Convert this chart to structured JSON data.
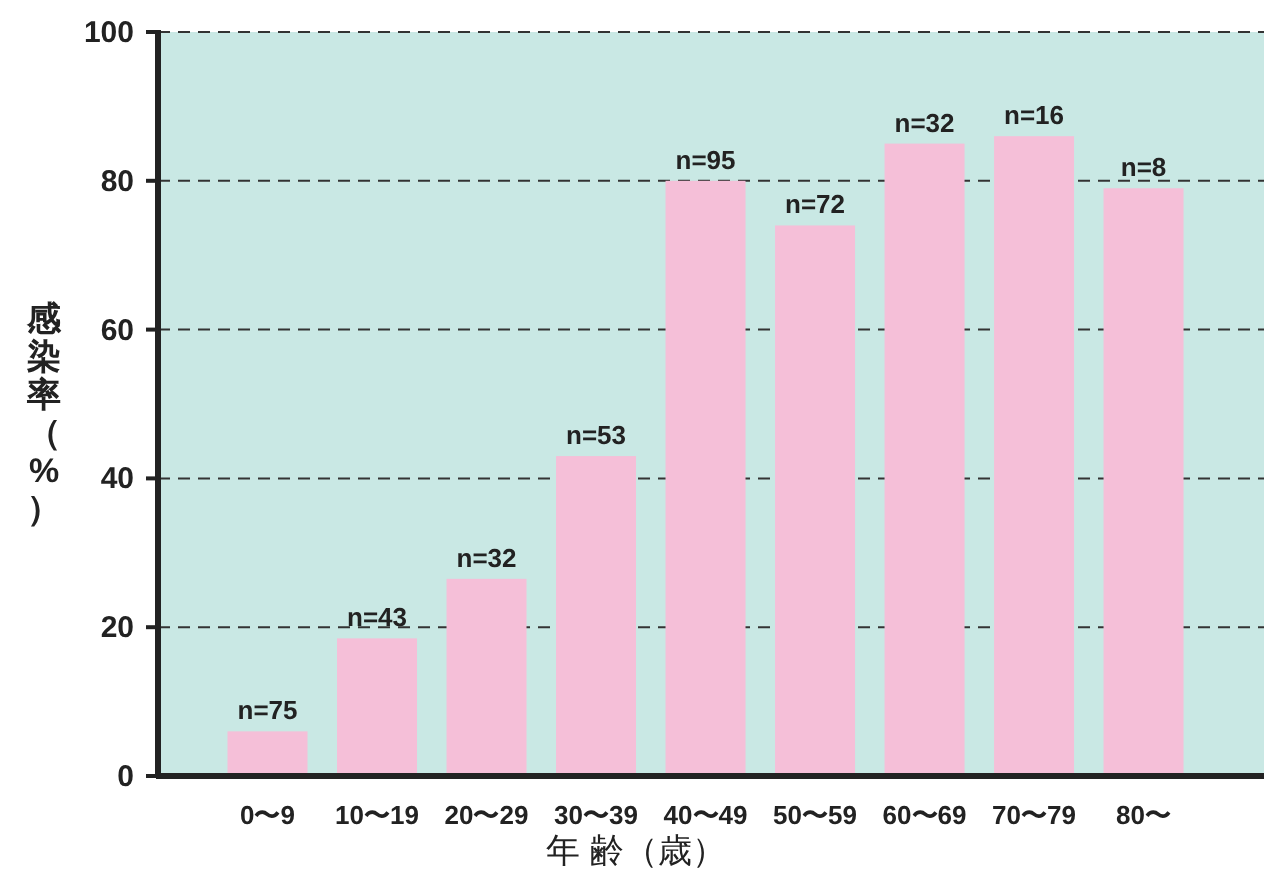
{
  "chart_data": {
    "type": "bar",
    "xlabel": "年 齢（歳）",
    "ylabel": "感染率（%）",
    "categories": [
      "0〜9",
      "10〜19",
      "20〜29",
      "30〜39",
      "40〜49",
      "50〜59",
      "60〜69",
      "70〜79",
      "80〜"
    ],
    "values": [
      6,
      18.5,
      26.5,
      43,
      80,
      74,
      85,
      86,
      79
    ],
    "annotations": [
      {
        "text": "n=75",
        "x": "0〜9",
        "y": 6
      },
      {
        "text": "n=43",
        "x": "10〜19",
        "y": 18.5
      },
      {
        "text": "n=32",
        "x": "20〜29",
        "y": 26.5
      },
      {
        "text": "n=53",
        "x": "30〜39",
        "y": 43
      },
      {
        "text": "n=95",
        "x": "40〜49",
        "y": 80
      },
      {
        "text": "n=72",
        "x": "50〜59",
        "y": 74
      },
      {
        "text": "n=32",
        "x": "60〜69",
        "y": 85
      },
      {
        "text": "n=16",
        "x": "70〜79",
        "y": 86
      },
      {
        "text": "n=8",
        "x": "80〜",
        "y": 79
      }
    ],
    "color": "#f5bfd8",
    "ylim": [
      0,
      100
    ],
    "yticks": [
      0,
      20,
      40,
      60,
      80,
      100
    ],
    "grid": "y"
  }
}
